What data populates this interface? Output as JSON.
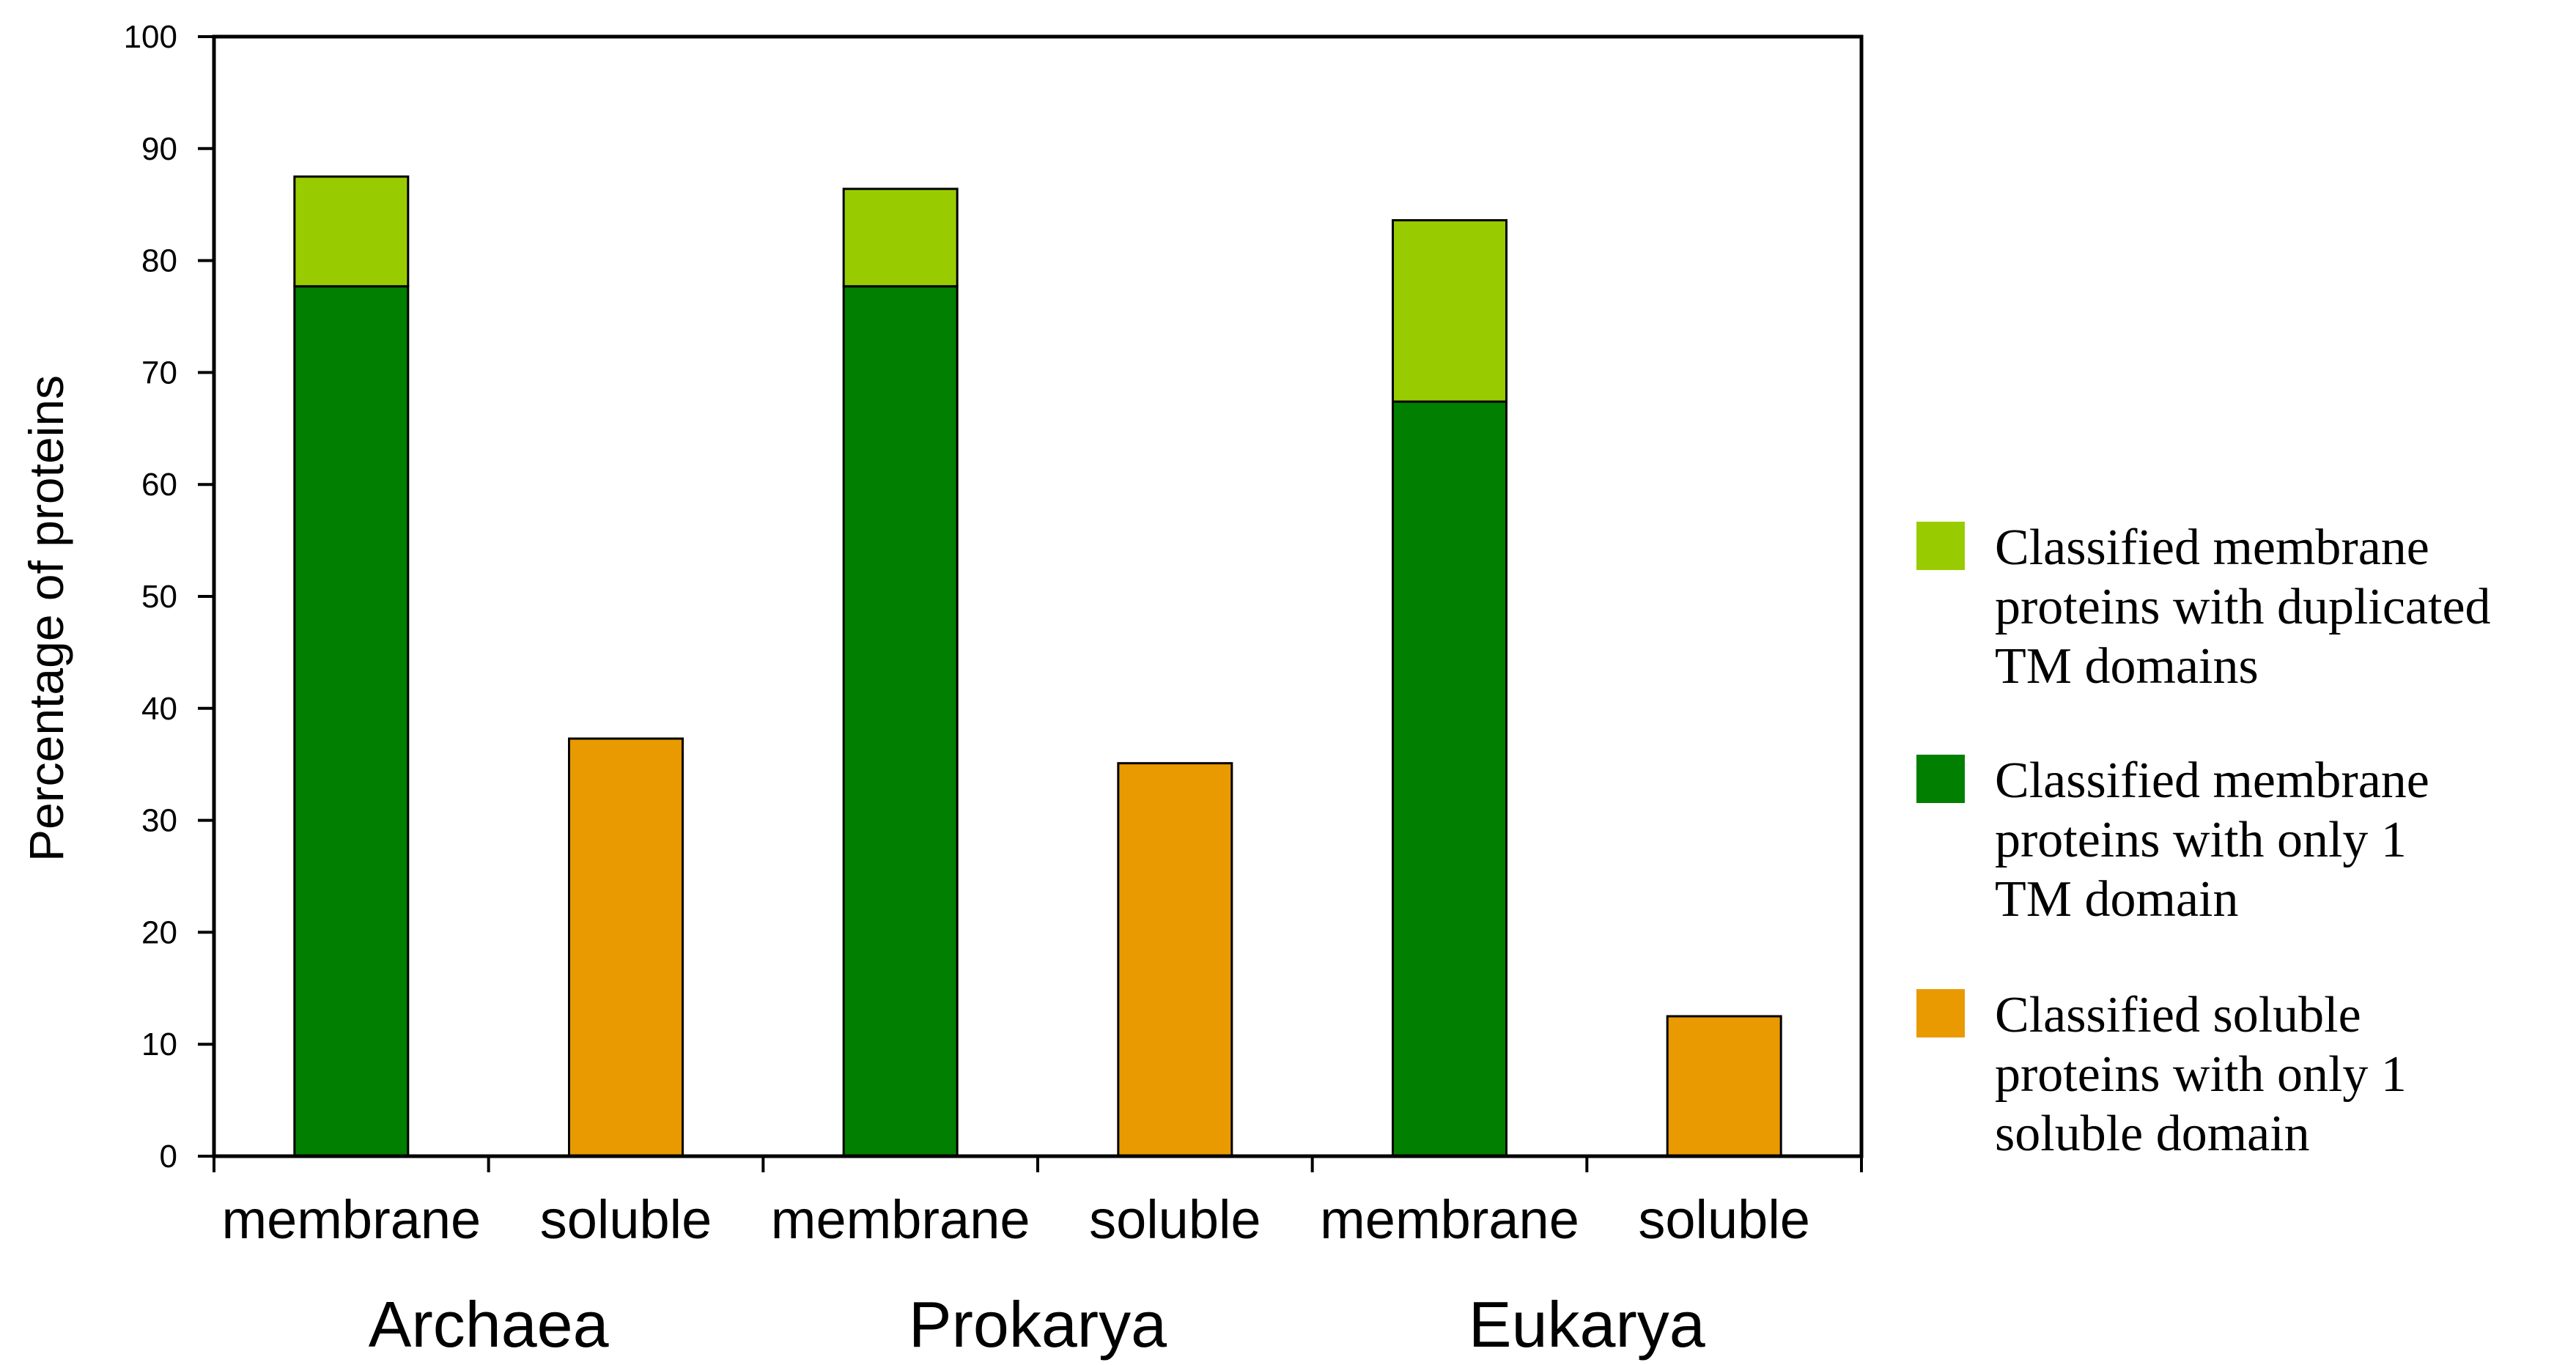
{
  "chart_data": {
    "type": "bar",
    "stacked": true,
    "ylabel": "Percentage of proteins",
    "ylim": [
      0,
      100
    ],
    "yticks": [
      0,
      10,
      20,
      30,
      40,
      50,
      60,
      70,
      80,
      90,
      100
    ],
    "categories": [
      "membrane",
      "soluble",
      "membrane",
      "soluble",
      "membrane",
      "soluble"
    ],
    "groups": [
      {
        "label": "Archaea",
        "categories": [
          0,
          1
        ]
      },
      {
        "label": "Prokarya",
        "categories": [
          2,
          3
        ]
      },
      {
        "label": "Eukarya",
        "categories": [
          4,
          5
        ]
      }
    ],
    "series": [
      {
        "name_lines": [
          "Classified membrane",
          "proteins with only 1",
          "TM domain"
        ],
        "color": "#007f00",
        "values": [
          77.7,
          0,
          77.7,
          0,
          67.4,
          0
        ]
      },
      {
        "name_lines": [
          "Classified membrane",
          "proteins with duplicated",
          "TM domains"
        ],
        "color": "#99cc00",
        "values": [
          9.8,
          0,
          8.7,
          0,
          16.2,
          0
        ]
      },
      {
        "name_lines": [
          "Classified soluble",
          "proteins with only 1",
          "soluble domain"
        ],
        "color": "#e89a00",
        "values": [
          0,
          37.3,
          0,
          35.1,
          0,
          12.5
        ]
      }
    ],
    "legend_order": [
      1,
      0,
      2
    ],
    "legend_position": "right",
    "grid": false
  }
}
